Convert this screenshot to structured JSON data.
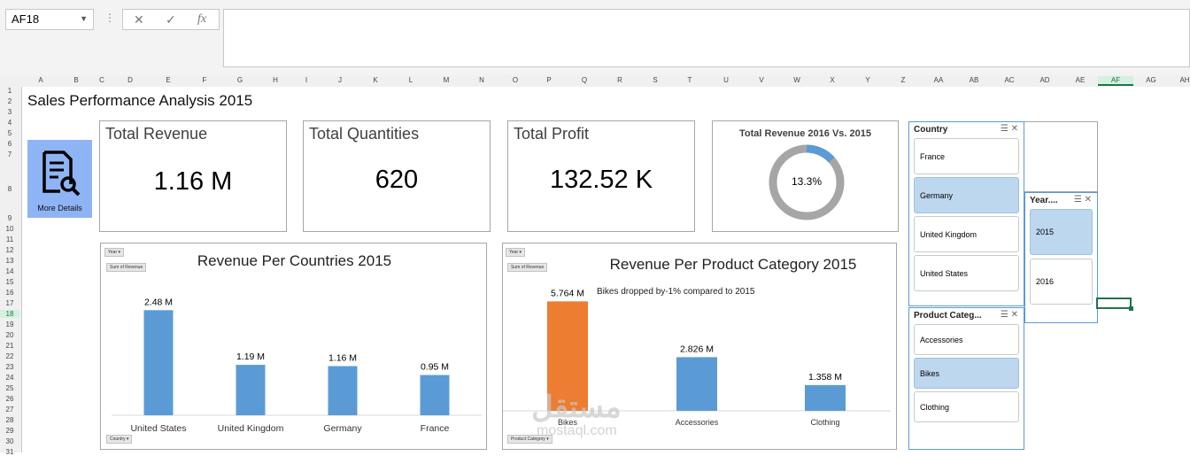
{
  "formula_bar": {
    "name_box": "AF18",
    "fx": "fx",
    "cancel": "✕",
    "enter": "✓"
  },
  "columns": [
    "A",
    "B",
    "C",
    "D",
    "E",
    "F",
    "G",
    "H",
    "I",
    "J",
    "K",
    "L",
    "M",
    "N",
    "O",
    "P",
    "Q",
    "R",
    "S",
    "T",
    "U",
    "V",
    "W",
    "X",
    "Y",
    "Z",
    "AA",
    "AB",
    "AC",
    "AD",
    "AE",
    "AF",
    "AG",
    "AH"
  ],
  "rows": [
    "1",
    "2",
    "3",
    "4",
    "5",
    "6",
    "7",
    "8",
    "9",
    "10",
    "11",
    "12",
    "13",
    "14",
    "15",
    "16",
    "17",
    "18",
    "19",
    "20",
    "21",
    "22",
    "23",
    "24",
    "25",
    "26",
    "27",
    "28",
    "29",
    "30",
    "31"
  ],
  "dashboard": {
    "title": "Sales Performance Analysis 2015",
    "more_details": "More Details",
    "kpis": {
      "revenue": {
        "title": "Total Revenue",
        "value": "1.16 M"
      },
      "quantities": {
        "title": "Total Quantities",
        "value": "620"
      },
      "profit": {
        "title": "Total Profit",
        "value": "132.52 K"
      }
    },
    "donut": {
      "title": "Total Revenue 2016 Vs. 2015",
      "label": "13.3%",
      "fraction": 0.133,
      "fill": "#5b9bd5",
      "track": "#a6a6a6"
    },
    "country_chart": {
      "title": "Revenue Per Countries 2015",
      "filter_chip": "Year",
      "value_chip": "Sum of Revenue",
      "axis_chip": "Country"
    },
    "category_chart": {
      "title": "Revenue Per Product Category 2015",
      "annotation": "Bikes dropped by-1% compared to 2015",
      "filter_chip": "Year",
      "value_chip": "Sum of Revenue",
      "axis_chip": "Product Category"
    },
    "slicers": {
      "country": {
        "title": "Country",
        "items": [
          "France",
          "Germany",
          "United Kingdom",
          "United States"
        ],
        "selected": "Germany"
      },
      "year": {
        "title": "Year....",
        "items": [
          "2015",
          "2016"
        ],
        "selected": "2015"
      },
      "category": {
        "title": "Product Categ...",
        "items": [
          "Accessories",
          "Bikes",
          "Clothing"
        ],
        "selected": "Bikes"
      }
    },
    "watermark": {
      "arabic": "مستقل",
      "latin": "mostaql.com"
    }
  },
  "chart_data": [
    {
      "type": "bar",
      "title": "Revenue Per Countries 2015",
      "categories": [
        "United States",
        "United Kingdom",
        "Germany",
        "France"
      ],
      "values": [
        2.48,
        1.19,
        1.16,
        0.95
      ],
      "labels": [
        "2.48 M",
        "1.19 M",
        "1.16 M",
        "0.95 M"
      ],
      "colors": [
        "#5b9bd5",
        "#5b9bd5",
        "#5b9bd5",
        "#5b9bd5"
      ],
      "ylim": [
        0,
        2.8
      ]
    },
    {
      "type": "bar",
      "title": "Revenue Per Product Category 2015",
      "categories": [
        "Bikes",
        "Accessories",
        "Clothing"
      ],
      "values": [
        5.764,
        2.826,
        1.358
      ],
      "labels": [
        "5.764 M",
        "2.826 M",
        "1.358 M"
      ],
      "colors": [
        "#ed7d31",
        "#5b9bd5",
        "#5b9bd5"
      ],
      "ylim": [
        0,
        6.2
      ]
    }
  ]
}
